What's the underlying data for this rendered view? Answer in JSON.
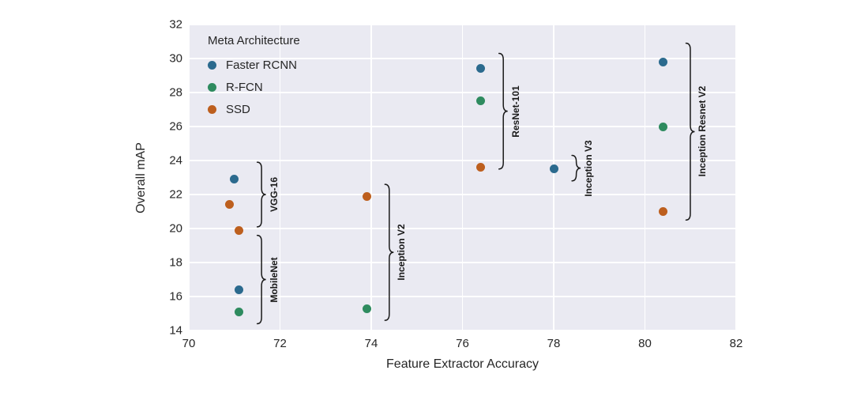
{
  "chart_data": {
    "type": "scatter",
    "title": "",
    "xlabel": "Feature Extractor Accuracy",
    "ylabel": "Overall mAP",
    "xlim": [
      70,
      82
    ],
    "ylim": [
      14,
      32
    ],
    "xticks": [
      70,
      72,
      74,
      76,
      78,
      80,
      82
    ],
    "yticks": [
      14,
      16,
      18,
      20,
      22,
      24,
      26,
      28,
      30,
      32
    ],
    "grid": true,
    "plot_background": "#eaeaf2",
    "gridline_color": "#ffffff",
    "legend": {
      "title": "Meta Architecture",
      "position": "upper-left"
    },
    "series": [
      {
        "name": "Faster RCNN",
        "color": "#2b6a8e",
        "points": [
          [
            71.0,
            22.9
          ],
          [
            71.1,
            16.4
          ],
          [
            76.4,
            29.4
          ],
          [
            78.0,
            23.5
          ],
          [
            80.4,
            29.8
          ]
        ]
      },
      {
        "name": "R-FCN",
        "color": "#2e8b5f",
        "points": [
          [
            71.1,
            15.1
          ],
          [
            73.9,
            15.3
          ],
          [
            76.4,
            27.5
          ],
          [
            80.4,
            26.0
          ]
        ]
      },
      {
        "name": "SSD",
        "color": "#bd5f1e",
        "points": [
          [
            70.9,
            21.4
          ],
          [
            71.1,
            19.9
          ],
          [
            73.9,
            21.9
          ],
          [
            76.4,
            23.6
          ],
          [
            80.4,
            21.0
          ]
        ]
      }
    ],
    "feature_extractor_groups": [
      {
        "label": "VGG-16",
        "brace_x": 71.5,
        "map_top": 23.9,
        "map_bottom": 20.1
      },
      {
        "label": "MobileNet",
        "brace_x": 71.5,
        "map_top": 19.6,
        "map_bottom": 14.4
      },
      {
        "label": "Inception V2",
        "brace_x": 74.3,
        "map_top": 22.6,
        "map_bottom": 14.6
      },
      {
        "label": "ResNet-101",
        "brace_x": 76.8,
        "map_top": 30.3,
        "map_bottom": 23.5
      },
      {
        "label": "Inception V3",
        "brace_x": 78.4,
        "map_top": 24.3,
        "map_bottom": 22.8
      },
      {
        "label": "Inception Resnet V2",
        "brace_x": 80.9,
        "map_top": 30.9,
        "map_bottom": 20.5
      }
    ]
  }
}
